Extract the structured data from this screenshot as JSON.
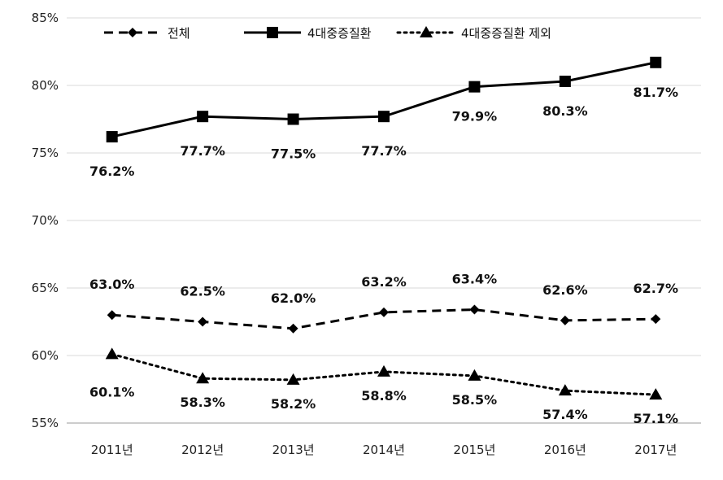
{
  "chart_data": {
    "type": "line",
    "categories": [
      "2011년",
      "2012년",
      "2013년",
      "2014년",
      "2015년",
      "2016년",
      "2017년"
    ],
    "ylim": [
      55,
      85
    ],
    "yticks": [
      "55%",
      "60%",
      "65%",
      "70%",
      "75%",
      "80%",
      "85%"
    ],
    "grid": true,
    "legend_position": "top",
    "series": [
      {
        "name": "전체",
        "style": "dashed",
        "marker": "diamond",
        "color": "#000000",
        "values": [
          63.0,
          62.5,
          62.0,
          63.2,
          63.4,
          62.6,
          62.7
        ],
        "labels": [
          "63.0%",
          "62.5%",
          "62.0%",
          "63.2%",
          "63.4%",
          "62.6%",
          "62.7%"
        ]
      },
      {
        "name": "4대중증질환",
        "style": "solid",
        "marker": "square",
        "color": "#000000",
        "values": [
          76.2,
          77.7,
          77.5,
          77.7,
          79.9,
          80.3,
          81.7
        ],
        "labels": [
          "76.2%",
          "77.7%",
          "77.5%",
          "77.7%",
          "79.9%",
          "80.3%",
          "81.7%"
        ]
      },
      {
        "name": "4대중증질환 제외",
        "style": "dotted",
        "marker": "triangle",
        "color": "#000000",
        "values": [
          60.1,
          58.3,
          58.2,
          58.8,
          58.5,
          57.4,
          57.1
        ],
        "labels": [
          "60.1%",
          "58.3%",
          "58.2%",
          "58.8%",
          "58.5%",
          "57.4%",
          "57.1%"
        ]
      }
    ]
  }
}
